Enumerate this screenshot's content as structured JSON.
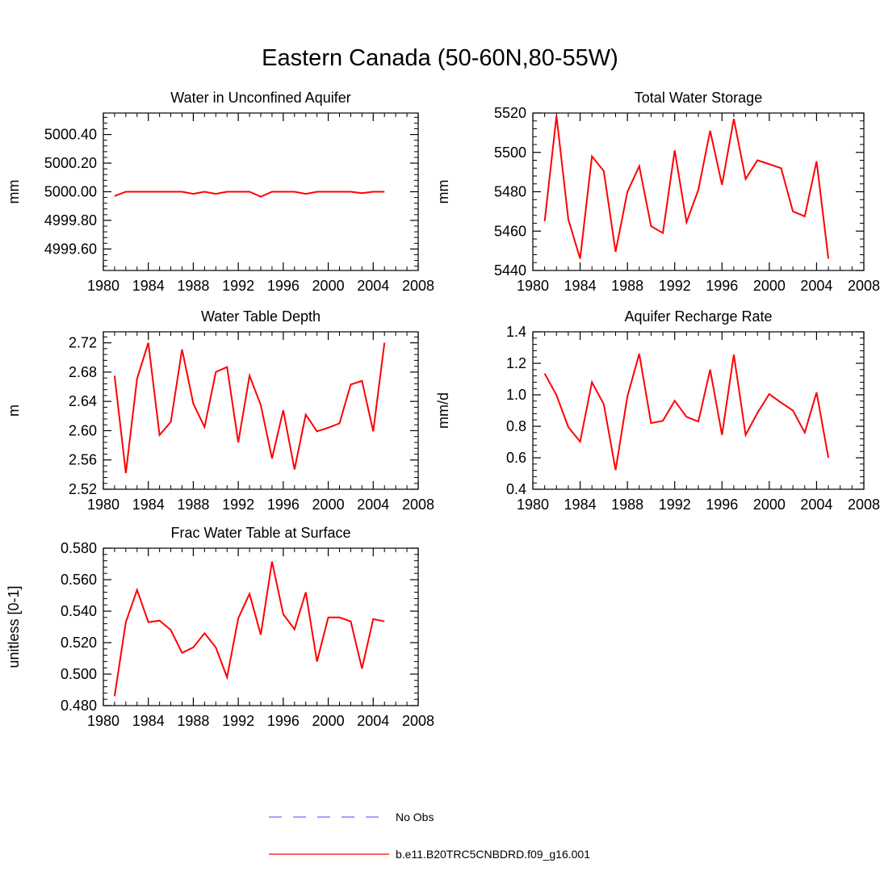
{
  "figure_title": "Eastern Canada (50-60N,80-55W)",
  "colors": {
    "model_line": "#ff0000",
    "obs_line": "#6a6aff",
    "axis": "#000000"
  },
  "legend": [
    {
      "label": "No Obs",
      "style": "dashed",
      "color": "#6a6aff"
    },
    {
      "label": "b.e11.B20TRC5CNBDRD.f09_g16.001",
      "style": "solid",
      "color": "#ff0000"
    }
  ],
  "chart_data": [
    {
      "type": "line",
      "title": "Water in Unconfined Aquifer",
      "ylabel": "mm",
      "xlabel": "",
      "xlim": [
        1980,
        2008
      ],
      "xticks": [
        1980,
        1984,
        1988,
        1992,
        1996,
        2000,
        2004,
        2008
      ],
      "ylim": [
        4999.45,
        5000.55
      ],
      "yticks": [
        4999.6,
        4999.8,
        5000.0,
        5000.2,
        5000.4
      ],
      "ytick_labels": [
        "4999.60",
        "4999.80",
        "5000.00",
        "5000.20",
        "5000.40"
      ],
      "x": [
        1981,
        1982,
        1983,
        1984,
        1985,
        1986,
        1987,
        1988,
        1989,
        1990,
        1991,
        1992,
        1993,
        1994,
        1995,
        1996,
        1997,
        1998,
        1999,
        2000,
        2001,
        2002,
        2003,
        2004,
        2005
      ],
      "series": [
        {
          "name": "b.e11.B20TRC5CNBDRD.f09_g16.001",
          "values": [
            4999.97,
            5000.0,
            5000.0,
            5000.0,
            5000.0,
            5000.0,
            5000.0,
            4999.985,
            5000.0,
            4999.985,
            5000.0,
            5000.0,
            5000.0,
            4999.965,
            5000.0,
            5000.0,
            5000.0,
            4999.985,
            5000.0,
            5000.0,
            5000.0,
            5000.0,
            4999.99,
            5000.0,
            5000.0
          ]
        }
      ]
    },
    {
      "type": "line",
      "title": "Total Water Storage",
      "ylabel": "mm",
      "xlabel": "",
      "xlim": [
        1980,
        2008
      ],
      "xticks": [
        1980,
        1984,
        1988,
        1992,
        1996,
        2000,
        2004,
        2008
      ],
      "ylim": [
        5440,
        5520
      ],
      "yticks": [
        5440,
        5460,
        5480,
        5500,
        5520
      ],
      "ytick_labels": [
        "5440",
        "5460",
        "5480",
        "5500",
        "5520"
      ],
      "x": [
        1981,
        1982,
        1983,
        1984,
        1985,
        1986,
        1987,
        1988,
        1989,
        1990,
        1991,
        1992,
        1993,
        1994,
        1995,
        1996,
        1997,
        1998,
        1999,
        2000,
        2001,
        2002,
        2003,
        2004,
        2005
      ],
      "series": [
        {
          "name": "b.e11.B20TRC5CNBDRD.f09_g16.001",
          "values": [
            5465,
            5518.5,
            5466,
            5446,
            5498,
            5490.5,
            5449.5,
            5480,
            5493,
            5462.5,
            5459,
            5501,
            5464.5,
            5481,
            5511,
            5483.5,
            5517,
            5486.5,
            5496,
            5494,
            5492,
            5470,
            5467.5,
            5495.5,
            5446
          ]
        }
      ]
    },
    {
      "type": "line",
      "title": "Water Table Depth",
      "ylabel": "m",
      "xlabel": "",
      "xlim": [
        1980,
        2008
      ],
      "xticks": [
        1980,
        1984,
        1988,
        1992,
        1996,
        2000,
        2004,
        2008
      ],
      "ylim": [
        2.52,
        2.735
      ],
      "yticks": [
        2.52,
        2.56,
        2.6,
        2.64,
        2.68,
        2.72
      ],
      "ytick_labels": [
        "2.52",
        "2.56",
        "2.60",
        "2.64",
        "2.68",
        "2.72"
      ],
      "x": [
        1981,
        1982,
        1983,
        1984,
        1985,
        1986,
        1987,
        1988,
        1989,
        1990,
        1991,
        1992,
        1993,
        1994,
        1995,
        1996,
        1997,
        1998,
        1999,
        2000,
        2001,
        2002,
        2003,
        2004,
        2005
      ],
      "series": [
        {
          "name": "b.e11.B20TRC5CNBDRD.f09_g16.001",
          "values": [
            2.675,
            2.542,
            2.671,
            2.72,
            2.594,
            2.612,
            2.711,
            2.637,
            2.605,
            2.68,
            2.687,
            2.584,
            2.675,
            2.635,
            2.562,
            2.628,
            2.547,
            2.622,
            2.599,
            2.604,
            2.61,
            2.663,
            2.668,
            2.599,
            2.72
          ]
        }
      ]
    },
    {
      "type": "line",
      "title": "Aquifer Recharge Rate",
      "ylabel": "mm/d",
      "xlabel": "",
      "xlim": [
        1980,
        2008
      ],
      "xticks": [
        1980,
        1984,
        1988,
        1992,
        1996,
        2000,
        2004,
        2008
      ],
      "ylim": [
        0.4,
        1.4
      ],
      "yticks": [
        0.4,
        0.6,
        0.8,
        1.0,
        1.2,
        1.4
      ],
      "ytick_labels": [
        "0.4",
        "0.6",
        "0.8",
        "1.0",
        "1.2",
        "1.4"
      ],
      "x": [
        1981,
        1982,
        1983,
        1984,
        1985,
        1986,
        1987,
        1988,
        1989,
        1990,
        1991,
        1992,
        1993,
        1994,
        1995,
        1996,
        1997,
        1998,
        1999,
        2000,
        2001,
        2002,
        2003,
        2004,
        2005
      ],
      "series": [
        {
          "name": "b.e11.B20TRC5CNBDRD.f09_g16.001",
          "values": [
            1.135,
            0.997,
            0.795,
            0.702,
            1.08,
            0.94,
            0.522,
            0.99,
            1.26,
            0.82,
            0.835,
            0.962,
            0.86,
            0.83,
            1.16,
            0.745,
            1.255,
            0.745,
            0.885,
            1.005,
            0.95,
            0.9,
            0.76,
            1.015,
            0.6
          ]
        }
      ]
    },
    {
      "type": "line",
      "title": "Frac Water Table at Surface",
      "ylabel": "unitless [0-1]",
      "xlabel": "",
      "xlim": [
        1980,
        2008
      ],
      "xticks": [
        1980,
        1984,
        1988,
        1992,
        1996,
        2000,
        2004,
        2008
      ],
      "ylim": [
        0.48,
        0.58
      ],
      "yticks": [
        0.48,
        0.5,
        0.52,
        0.54,
        0.56,
        0.58
      ],
      "ytick_labels": [
        "0.480",
        "0.500",
        "0.520",
        "0.540",
        "0.560",
        "0.580"
      ],
      "x": [
        1981,
        1982,
        1983,
        1984,
        1985,
        1986,
        1987,
        1988,
        1989,
        1990,
        1991,
        1992,
        1993,
        1994,
        1995,
        1996,
        1997,
        1998,
        1999,
        2000,
        2001,
        2002,
        2003,
        2004,
        2005
      ],
      "series": [
        {
          "name": "b.e11.B20TRC5CNBDRD.f09_g16.001",
          "values": [
            0.486,
            0.533,
            0.5535,
            0.533,
            0.534,
            0.528,
            0.5135,
            0.517,
            0.526,
            0.517,
            0.498,
            0.5355,
            0.551,
            0.525,
            0.5715,
            0.538,
            0.5285,
            0.552,
            0.508,
            0.536,
            0.536,
            0.5335,
            0.5035,
            0.535,
            0.5335
          ]
        }
      ]
    }
  ]
}
